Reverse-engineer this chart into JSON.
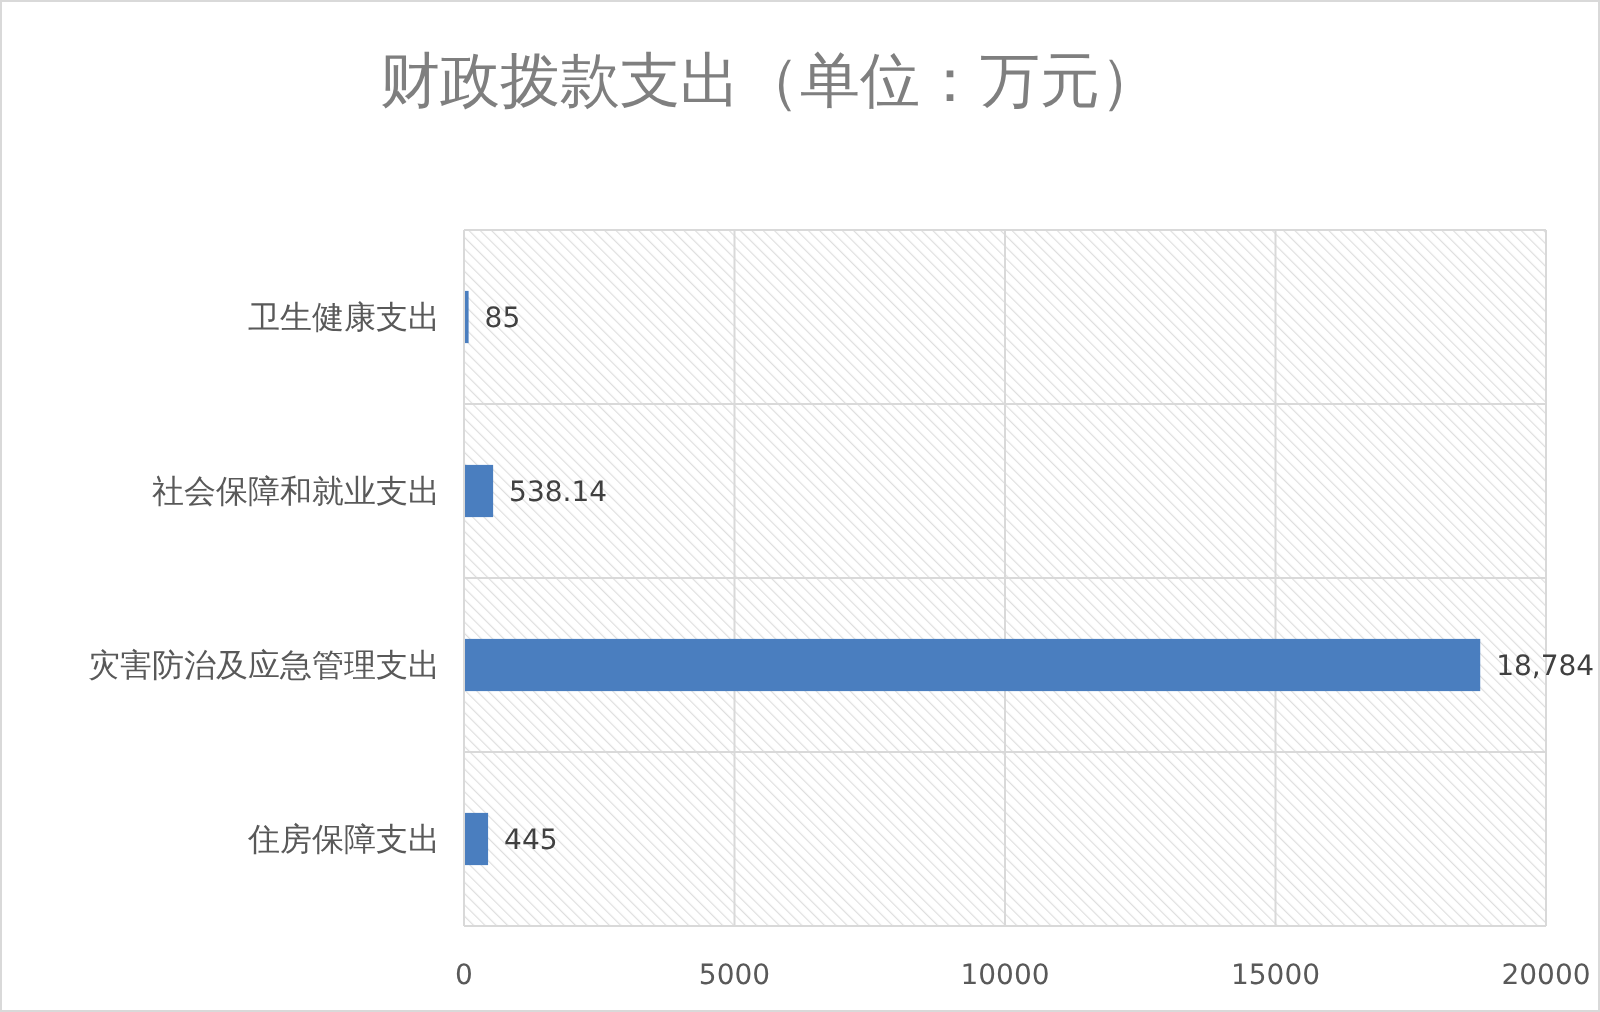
{
  "chart_data": {
    "type": "bar",
    "title": "财政拨款支出（单位：万元）",
    "orientation": "horizontal",
    "categories": [
      "卫生健康支出",
      "社会保障和就业支出",
      "灾害防治及应急管理支出",
      "住房保障支出"
    ],
    "values": [
      85,
      538.14,
      18784,
      445
    ],
    "color": "#4a7ebf",
    "value_labels": [
      "85",
      "538.14",
      "18,784",
      "445"
    ],
    "xlim": [
      0,
      20000
    ],
    "xticks": [
      0,
      5000,
      10000,
      15000,
      20000
    ],
    "grid": true
  }
}
